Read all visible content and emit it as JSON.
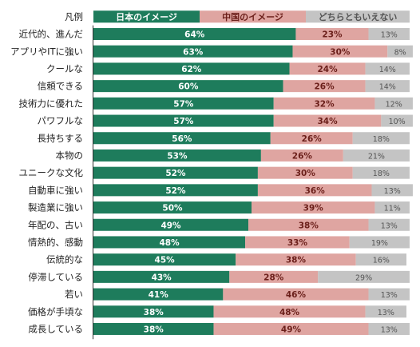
{
  "colors": {
    "japan": "#1e7c5c",
    "china": "#dfa5a1",
    "neither": "#c4c4c4",
    "japan_label": "#ffffff",
    "china_label": "#6b1f1a",
    "neither_label": "#555555"
  },
  "chart_data": {
    "type": "bar",
    "orientation": "horizontal",
    "stacked": true,
    "legend_label": "凡例",
    "categories": [
      "近代的、進んだ",
      "アプリやITに強い",
      "クールな",
      "信頼できる",
      "技術力に優れた",
      "パワフルな",
      "長持ちする",
      "本物の",
      "ユニークな文化",
      "自動車に強い",
      "製造業に強い",
      "年配の、古い",
      "情熱的、感動",
      "伝統的な",
      "停滞している",
      "若い",
      "価格が手頃な",
      "成長している"
    ],
    "series": [
      {
        "name": "日本のイメージ",
        "values": [
          64,
          63,
          62,
          60,
          57,
          57,
          56,
          53,
          52,
          52,
          50,
          49,
          48,
          45,
          43,
          41,
          38,
          38
        ]
      },
      {
        "name": "中国のイメージ",
        "values": [
          23,
          30,
          24,
          26,
          32,
          34,
          26,
          26,
          30,
          36,
          39,
          38,
          33,
          38,
          28,
          46,
          48,
          49
        ]
      },
      {
        "name": "どちらともいえない",
        "values": [
          13,
          8,
          14,
          14,
          12,
          10,
          18,
          21,
          18,
          13,
          11,
          13,
          19,
          16,
          29,
          13,
          13,
          13
        ]
      }
    ],
    "xlim": [
      0,
      100
    ],
    "unit": "%",
    "grid": false
  }
}
